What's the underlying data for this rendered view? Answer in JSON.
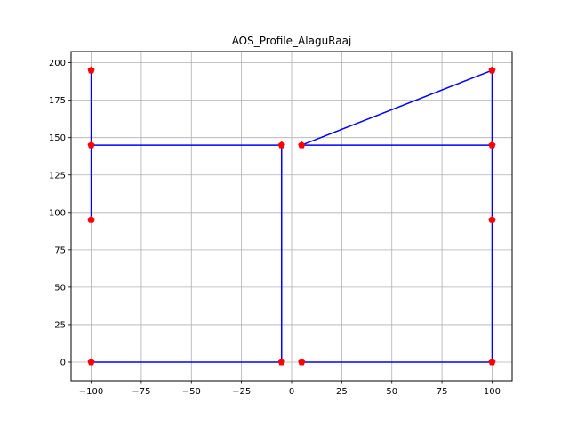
{
  "chart_data": {
    "type": "line",
    "title": "AOS_Profile_AlaguRaaj",
    "xlabel": "",
    "ylabel": "",
    "xlim": [
      -110,
      110
    ],
    "ylim": [
      -12.5,
      207.5
    ],
    "xticks": [
      -100,
      -75,
      -50,
      -25,
      0,
      25,
      50,
      75,
      100
    ],
    "yticks": [
      0,
      25,
      50,
      75,
      100,
      125,
      150,
      175,
      200
    ],
    "grid": true,
    "line_color": "#0000ff",
    "marker_color": "#ff0000",
    "marker": "pentagon",
    "series": [
      {
        "x": [
          -100,
          -5,
          -5,
          -100,
          -100,
          -100
        ],
        "y": [
          0,
          0,
          145,
          145,
          195,
          95
        ]
      },
      {
        "x": [
          5,
          100,
          100,
          5,
          100,
          100
        ],
        "y": [
          0,
          0,
          145,
          145,
          195,
          95
        ]
      }
    ]
  }
}
